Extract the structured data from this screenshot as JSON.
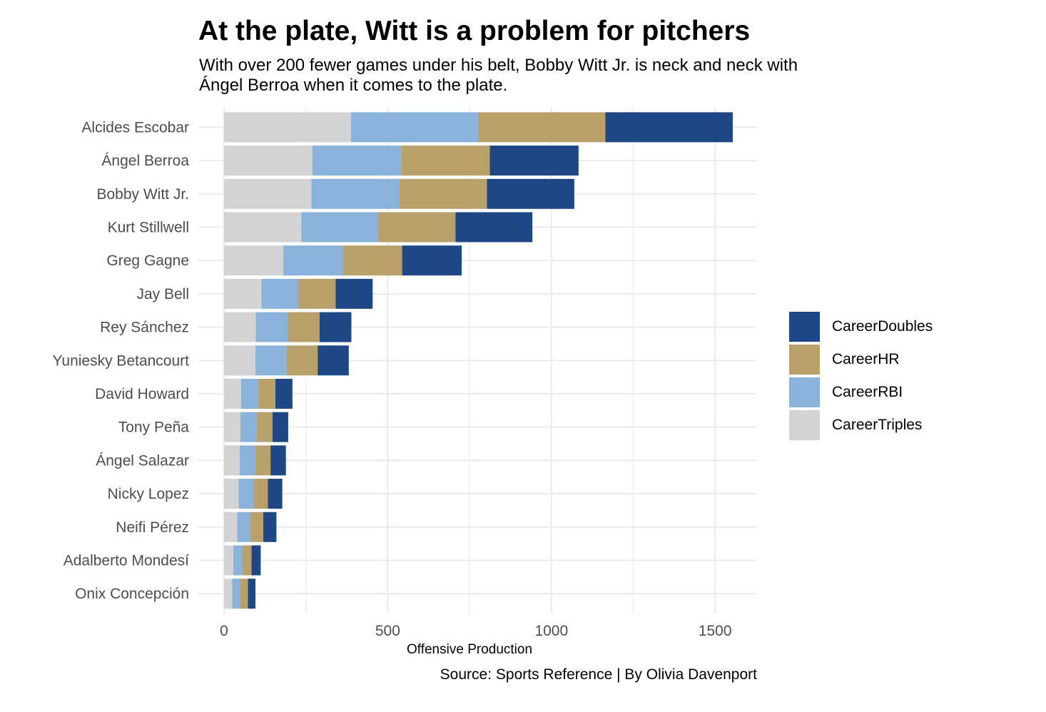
{
  "title": "At the plate, Witt is a problem for pitchers",
  "subtitle": "With over 200 fewer games under his belt, Bobby Witt Jr. is neck and neck with Ángel Berroa when it comes to the plate.",
  "caption": "Source: Sports Reference | By Olivia Davenport",
  "chart_data": {
    "type": "bar",
    "orientation": "horizontal",
    "stacked": true,
    "title": "At the plate, Witt is a problem for pitchers",
    "xlabel": "Offensive Production",
    "ylabel": "",
    "xlim": [
      0,
      1550
    ],
    "xticks": [
      0,
      500,
      1000,
      1500
    ],
    "grid": true,
    "legend_position": "right",
    "categories": [
      "Alcides Escobar",
      "Ángel Berroa",
      "Bobby Witt Jr.",
      "Kurt Stillwell",
      "Greg Gagne",
      "Jay Bell",
      "Rey Sánchez",
      "Yuniesky Betancourt",
      "David Howard",
      "Tony Peña",
      "Ángel Salazar",
      "Nicky Lopez",
      "Neifi Pérez",
      "Adalberto Mondesí",
      "Onix Concepción"
    ],
    "series": [
      {
        "name": "CareerTriples",
        "color": "#d3d3d3",
        "values": [
          388,
          270,
          267,
          236,
          181,
          114,
          97,
          96,
          52,
          50,
          48,
          45,
          40,
          28,
          25
        ]
      },
      {
        "name": "CareerRBI",
        "color": "#89b3da",
        "values": [
          389,
          271,
          268,
          235,
          182,
          113,
          98,
          95,
          53,
          50,
          47,
          45,
          40,
          28,
          24
        ]
      },
      {
        "name": "CareerHR",
        "color": "#b8a06b",
        "values": [
          388,
          271,
          268,
          236,
          181,
          114,
          97,
          95,
          52,
          48,
          47,
          44,
          40,
          28,
          24
        ]
      },
      {
        "name": "CareerDoubles",
        "color": "#1d4785",
        "values": [
          389,
          271,
          267,
          235,
          182,
          113,
          97,
          95,
          52,
          48,
          47,
          44,
          40,
          28,
          23
        ]
      }
    ],
    "legend_order": [
      "CareerDoubles",
      "CareerHR",
      "CareerRBI",
      "CareerTriples"
    ]
  }
}
